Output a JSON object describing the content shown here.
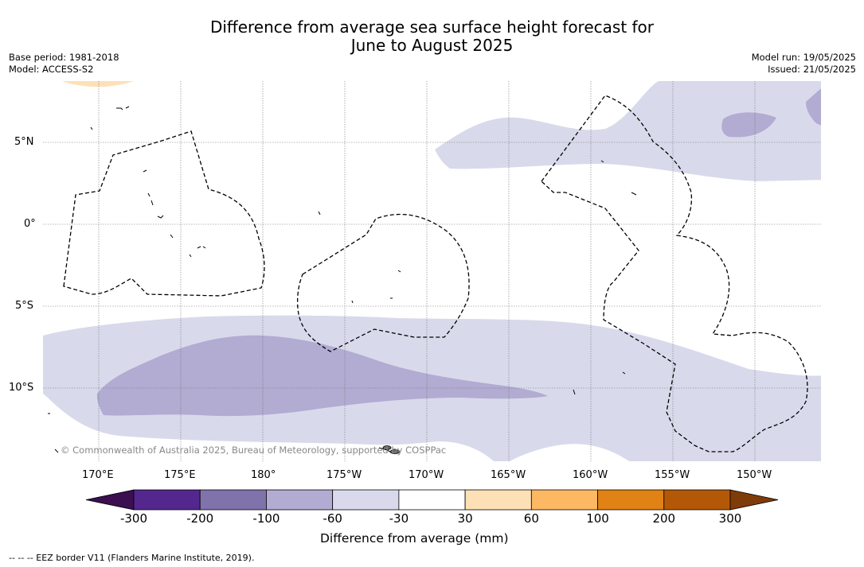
{
  "title": {
    "line1": "Difference from average sea surface height forecast for",
    "line2": "June to August 2025"
  },
  "meta_left": {
    "base_period": "Base period: 1981-2018",
    "model": "Model: ACCESS-S2"
  },
  "meta_right": {
    "model_run": "Model run: 19/05/2025",
    "issued": "Issued: 21/05/2025"
  },
  "lat_labels": [
    "5°N",
    "0°",
    "5°S",
    "10°S"
  ],
  "lon_labels": [
    "170°E",
    "175°E",
    "180°",
    "175°W",
    "170°W",
    "165°W",
    "160°W",
    "155°W",
    "150°W"
  ],
  "copyright": "© Commonwealth of Australia 2025, Bureau of Meteorology, supported by COSPPac",
  "legend": {
    "caption": "Difference from average (mm)",
    "ticks": [
      "-300",
      "-200",
      "-100",
      "-60",
      "-30",
      "30",
      "60",
      "100",
      "200",
      "300"
    ],
    "colors": [
      "#3b0f50",
      "#54278f",
      "#8073ac",
      "#b2abd2",
      "#d8daeb",
      "#ffffff",
      "#fee0b6",
      "#fdb863",
      "#e08214",
      "#b35806",
      "#7f3b08"
    ]
  },
  "footnote": "--  --  -- EEZ border V11 (Flanders Marine Institute, 2019)."
}
